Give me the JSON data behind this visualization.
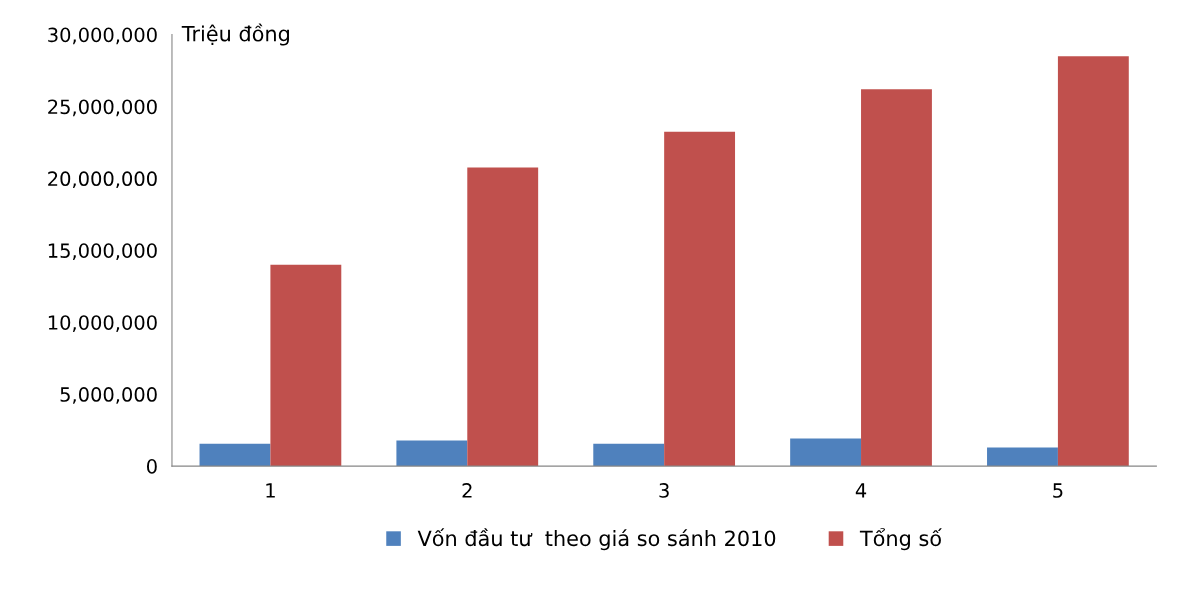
{
  "chart_data": {
    "type": "bar",
    "ylabel": "Triệu đồng",
    "categories": [
      "1",
      "2",
      "3",
      "4",
      "5"
    ],
    "series": [
      {
        "name": "Vốn đầu tư  theo giá so sánh 2010",
        "color": "#4f81bd",
        "values": [
          1560000,
          1780000,
          1560000,
          1910000,
          1290000
        ]
      },
      {
        "name": "Tổng số",
        "color": "#c0504d",
        "values": [
          14000000,
          20750000,
          23250000,
          26200000,
          28500000
        ]
      }
    ],
    "ylim": [
      0,
      30000000
    ],
    "yticks": [
      {
        "value": 0,
        "label": "0"
      },
      {
        "value": 5000000,
        "label": "5,000,000"
      },
      {
        "value": 10000000,
        "label": "10,000,000"
      },
      {
        "value": 15000000,
        "label": "15,000,000"
      },
      {
        "value": 20000000,
        "label": "20,000,000"
      },
      {
        "value": 25000000,
        "label": "25,000,000"
      },
      {
        "value": 30000000,
        "label": "30,000,000"
      }
    ],
    "grid": false,
    "legend": "bottom"
  }
}
